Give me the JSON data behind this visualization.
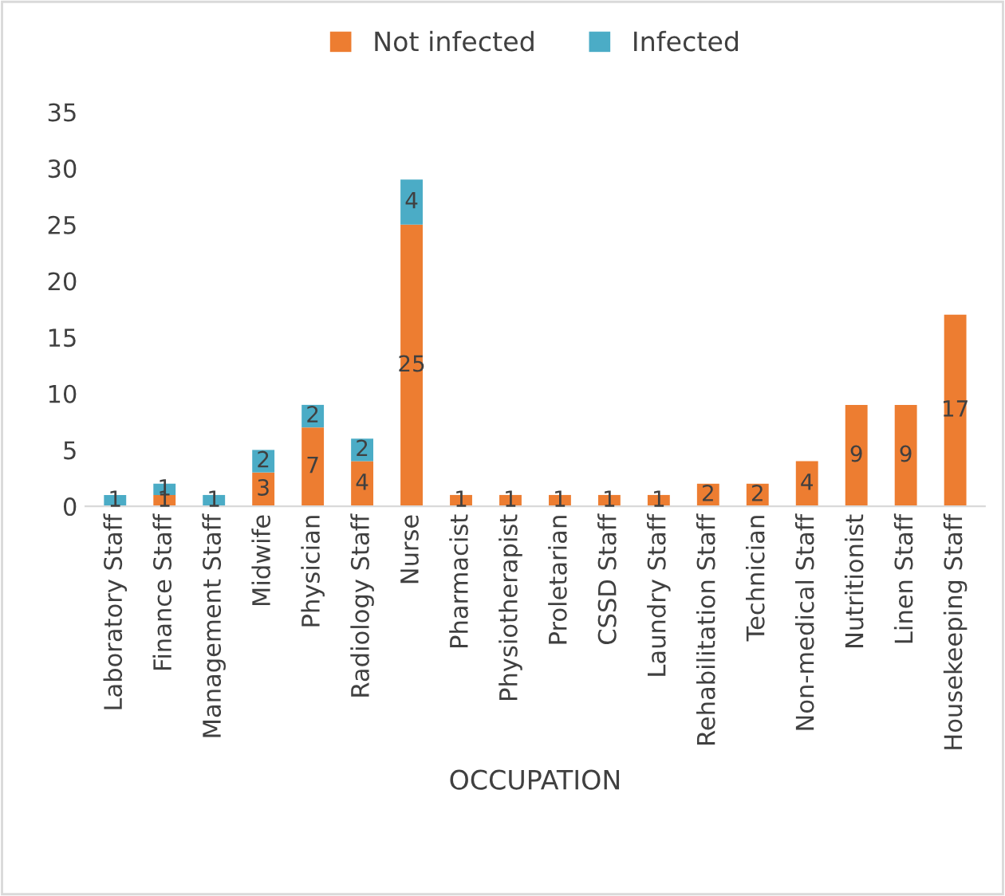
{
  "chart_data": {
    "type": "bar",
    "stacked": true,
    "xlabel": "OCCUPATION",
    "legend": "top",
    "grid": false,
    "categories": [
      "Laboratory Staff",
      "Finance Staff",
      "Management Staff",
      "Midwife",
      "Physician",
      "Radiology Staff",
      "Nurse",
      "Pharmacist",
      "Physiotherapist",
      "Proletarian",
      "CSSD Staff",
      "Laundry Staff",
      "Rehabilitation Staff",
      "Technician",
      "Non-medical Staff",
      "Nutritionist",
      "Linen Staff",
      "Housekeeping Staff"
    ],
    "series": [
      {
        "name": "Not infected",
        "color": "#ed7d31",
        "values": [
          0,
          1,
          0,
          3,
          7,
          4,
          25,
          1,
          1,
          1,
          1,
          1,
          2,
          2,
          4,
          9,
          9,
          17
        ],
        "value_labels": [
          null,
          "1",
          null,
          "3",
          "7",
          "4",
          "25",
          "1",
          "1",
          "1",
          "1",
          "1",
          "2",
          "2",
          "4",
          "9",
          "9",
          "17"
        ]
      },
      {
        "name": "Infected",
        "color": "#4bacc6",
        "values": [
          1,
          1,
          1,
          2,
          2,
          2,
          4,
          0,
          0,
          0,
          0,
          0,
          0,
          0,
          0,
          0,
          0,
          0
        ],
        "value_labels": [
          "1",
          "1",
          "1",
          "2",
          "2",
          "2",
          "4",
          null,
          null,
          null,
          null,
          null,
          null,
          null,
          null,
          null,
          null,
          null
        ]
      }
    ],
    "ylim": [
      0,
      35
    ],
    "yticks": [
      0,
      5,
      10,
      15,
      20,
      25,
      30,
      35
    ]
  }
}
